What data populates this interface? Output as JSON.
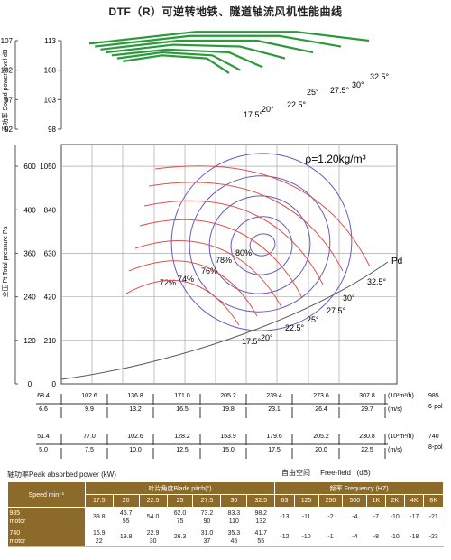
{
  "title": "DTF（R）可逆转地铁、隧道轴流风机性能曲线",
  "chart_data": [
    {
      "type": "line",
      "name": "sound-power",
      "ylabel": "声功率 Sound power level dB",
      "y_ticks_outer": [
        92,
        97,
        102,
        107
      ],
      "y_ticks_inner": [
        98,
        103,
        108,
        113
      ],
      "ylim": [
        92,
        107
      ],
      "angle_labels": [
        "17.5°",
        "20°",
        "22.5°",
        "25°",
        "27.5°",
        "30°",
        "32.5°"
      ],
      "series": [
        {
          "name": "17.5°",
          "points": [
            [
              55,
              103.5
            ],
            [
              90,
              104.5
            ],
            [
              130,
              104
            ],
            [
              150,
              101.5
            ]
          ]
        },
        {
          "name": "20°",
          "points": [
            [
              50,
              104
            ],
            [
              90,
              105
            ],
            [
              135,
              104.5
            ],
            [
              160,
              102
            ]
          ]
        },
        {
          "name": "22.5°",
          "points": [
            [
              45,
              104.5
            ],
            [
              95,
              105.5
            ],
            [
              150,
              105
            ],
            [
              180,
              102.5
            ]
          ]
        },
        {
          "name": "25°",
          "points": [
            [
              40,
              105
            ],
            [
              100,
              106.3
            ],
            [
              160,
              106
            ],
            [
              200,
              104
            ]
          ]
        },
        {
          "name": "27.5°",
          "points": [
            [
              35,
              105.5
            ],
            [
              105,
              107
            ],
            [
              175,
              107
            ],
            [
              225,
              105
            ]
          ]
        },
        {
          "name": "30°",
          "points": [
            [
              30,
              106
            ],
            [
              115,
              107.8
            ],
            [
              195,
              107.8
            ],
            [
              250,
              106
            ]
          ]
        },
        {
          "name": "32.5°",
          "points": [
            [
              25,
              106.5
            ],
            [
              120,
              108.5
            ],
            [
              210,
              108.5
            ],
            [
              275,
              107
            ]
          ]
        }
      ]
    },
    {
      "type": "line",
      "name": "pressure",
      "ylabel": "全压 Pt Total pressure Pa",
      "y_ticks_outer": [
        0,
        120,
        240,
        360,
        480,
        600
      ],
      "y_ticks_inner": [
        0,
        210,
        420,
        630,
        840,
        1050
      ],
      "annotation": "ρ=1.20kg/m³",
      "pd_label": "Pd",
      "angle_labels": [
        "17.5°",
        "20°",
        "22.5°",
        "25°",
        "27.5°",
        "30°",
        "32.5°"
      ],
      "efficiency_labels": [
        "72%",
        "74%",
        "76%",
        "78%",
        "80%"
      ],
      "x_axes": [
        {
          "values": [
            "68.4",
            "102.6",
            "136.8",
            "171.0",
            "205.2",
            "239.4",
            "273.6",
            "307.8"
          ],
          "unit": "(10³m³/h)",
          "speed": "985",
          "pole": "6-pol"
        },
        {
          "values": [
            "6.6",
            "9.9",
            "13.2",
            "16.5",
            "19.8",
            "23.1",
            "26.4",
            "29.7"
          ],
          "unit": "(m/s)",
          "speed": "",
          "pole": ""
        },
        {
          "values": [
            "51.4",
            "77.0",
            "102.6",
            "128.2",
            "153.9",
            "179.6",
            "205.2",
            "230.8"
          ],
          "unit": "(10³m³/h)",
          "speed": "740",
          "pole": "8-pol"
        },
        {
          "values": [
            "5.0",
            "7.5",
            "10.0",
            "12.5",
            "15.0",
            "17.5",
            "20.0",
            "22.5"
          ],
          "unit": "(m/s)",
          "speed": "",
          "pole": ""
        }
      ]
    }
  ],
  "sections": {
    "power_label": "轴功率Peak absorbed power",
    "power_unit": "(kW)",
    "freefield_cn": "自由空间",
    "freefield_en": "Free-field",
    "freefield_unit": "(dB)"
  },
  "table": {
    "speed_header": "Speed min⁻¹",
    "blade_header": "叶片角度Blade pitch(°)",
    "freq_header": "频率 Frequency (HZ)",
    "pitches": [
      "17.5",
      "20",
      "22.5",
      "25",
      "27.5",
      "30",
      "32.5"
    ],
    "freqs": [
      "63",
      "125",
      "250",
      "500",
      "1K",
      "2K",
      "4K",
      "8K"
    ],
    "rows": [
      {
        "speed": "985",
        "motor": "motor",
        "power": [
          "39.8",
          "46.7\n55",
          "54.0",
          "62.0\n75",
          "73.2\n90",
          "83.3\n110",
          "98.2\n132"
        ],
        "db": [
          "-13",
          "-11",
          "-2",
          "-4",
          "-7",
          "-10",
          "-17",
          "-21"
        ]
      },
      {
        "speed": "740",
        "motor": "motor",
        "power": [
          "16.9\n22",
          "19.8",
          "22.9\n30",
          "26.3",
          "31.0\n37",
          "35.3\n45",
          "41.7\n55"
        ],
        "db": [
          "-12",
          "-10",
          "-1",
          "-4",
          "-8",
          "-10",
          "-18",
          "-23"
        ]
      }
    ]
  }
}
